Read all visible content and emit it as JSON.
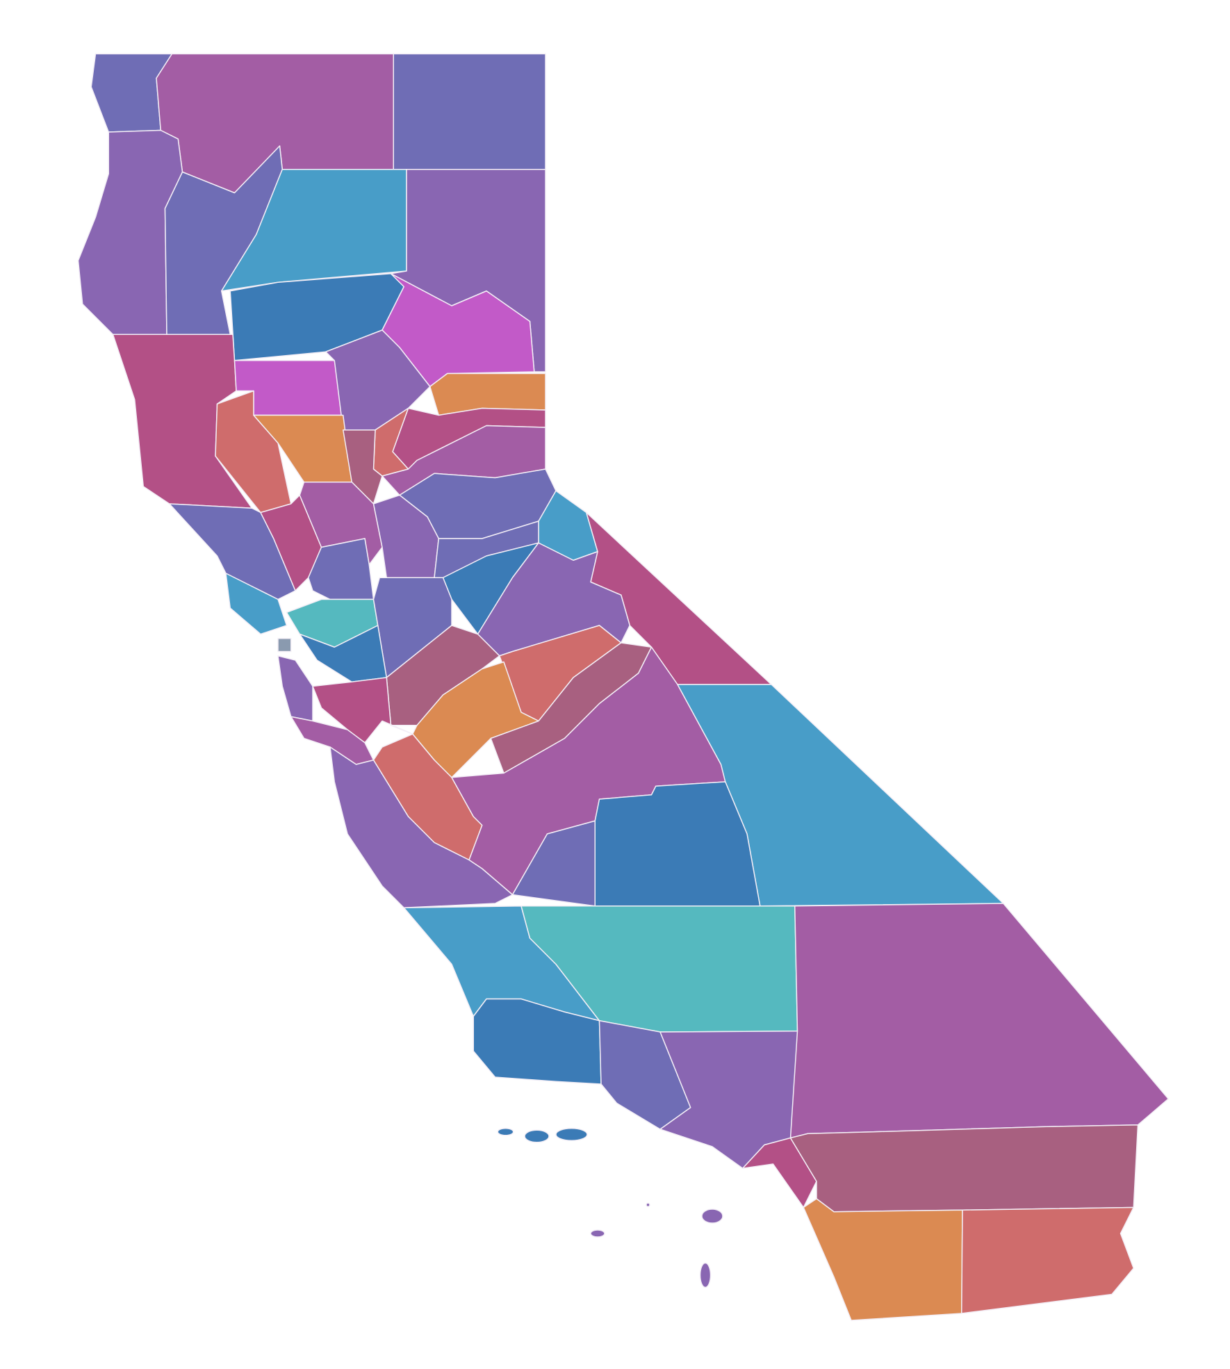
{
  "regions": [
    {
      "color": "#6f6db5"
    },
    {
      "color": "#a35da4"
    },
    {
      "color": "#6f6db5"
    },
    {
      "color": "#8966b2"
    },
    {
      "color": "#6f6db5"
    },
    {
      "color": "#489dc8"
    },
    {
      "color": "#8966b2"
    },
    {
      "color": "#3b7bb6"
    },
    {
      "color": "#c25ac8"
    },
    {
      "color": "#b35086"
    },
    {
      "color": "#c25ac8"
    },
    {
      "color": "#8966b2"
    },
    {
      "color": "#cf6c6c"
    },
    {
      "color": "#db8a52"
    },
    {
      "color": "#db8a52"
    },
    {
      "color": "#b35086"
    },
    {
      "color": "#cf6c6c"
    },
    {
      "color": "#a86080"
    },
    {
      "color": "#a35da4"
    },
    {
      "color": "#6f6db5"
    },
    {
      "color": "#b35086"
    },
    {
      "color": "#a35da4"
    },
    {
      "color": "#6f6db5"
    },
    {
      "color": "#489dc8"
    },
    {
      "color": "#8966b2"
    },
    {
      "color": "#6f6db5"
    },
    {
      "color": "#489dc8"
    },
    {
      "color": "#6f6db5"
    },
    {
      "color": "#3b7bb6"
    },
    {
      "color": "#b35086"
    },
    {
      "color": "#8966b2"
    },
    {
      "color": "#55b9bf"
    },
    {
      "color": "#6f6db5"
    },
    {
      "color": "#8a9aaf"
    },
    {
      "color": "#3b7bb6"
    },
    {
      "color": "#8966b2"
    },
    {
      "color": "#a86080"
    },
    {
      "color": "#cf6c6c"
    },
    {
      "color": "#b35086"
    },
    {
      "color": "#db8a52"
    },
    {
      "color": "#a86080"
    },
    {
      "color": "#a35da4"
    },
    {
      "color": "#cf6c6c"
    },
    {
      "color": "#a35da4"
    },
    {
      "color": "#8966b2"
    },
    {
      "color": "#489dc8"
    },
    {
      "color": "#6f6db5"
    },
    {
      "color": "#3b7bb6"
    },
    {
      "color": "#489dc8"
    },
    {
      "color": "#55b9bf"
    },
    {
      "color": "#a35da4"
    },
    {
      "color": "#3b7bb6"
    },
    {
      "color": "#6f6db5"
    },
    {
      "color": "#8966b2"
    },
    {
      "color": "#b35086"
    },
    {
      "color": "#a86080"
    },
    {
      "color": "#db8a52"
    },
    {
      "color": "#cf6c6c"
    }
  ],
  "islands": [
    {
      "color": "#3b7bb6"
    },
    {
      "color": "#8966b2"
    }
  ]
}
